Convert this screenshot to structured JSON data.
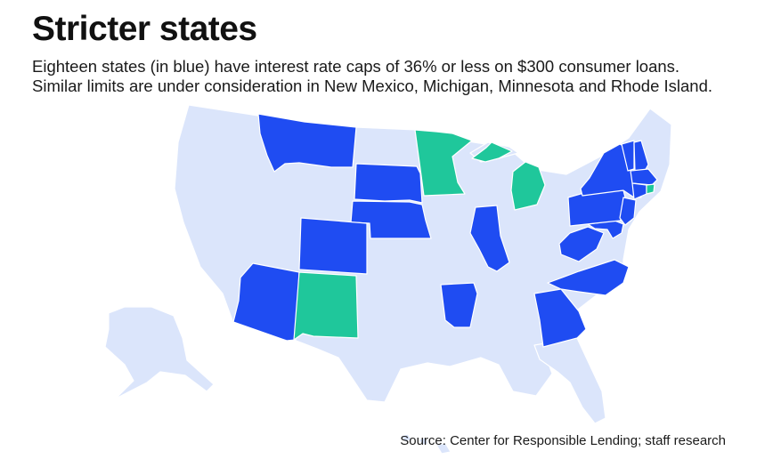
{
  "title": "Stricter states",
  "subtitle": {
    "line1": "Eighteen states (in blue) have interest rate caps of 36% or less on $300 consumer loans.",
    "line2": "Similar limits are under consideration in New Mexico, Michigan, Minnesota and Rhode Island."
  },
  "source": "Source: Center for Responsible Lending; staff research",
  "colors": {
    "capped": "#1f4cf2",
    "under_consideration": "#1fc79b",
    "other": "#dbe5fb",
    "border": "#ffffff"
  },
  "map_data": {
    "capped_states": [
      "Montana",
      "South Dakota",
      "Nebraska",
      "Colorado",
      "Arizona",
      "Arkansas",
      "Illinois",
      "Georgia",
      "North Carolina",
      "West Virginia",
      "Maryland",
      "Pennsylvania",
      "New Jersey",
      "New York",
      "Vermont",
      "New Hampshire",
      "Massachusetts",
      "Connecticut"
    ],
    "under_consideration_states": [
      "New Mexico",
      "Michigan",
      "Minnesota",
      "Rhode Island"
    ]
  }
}
